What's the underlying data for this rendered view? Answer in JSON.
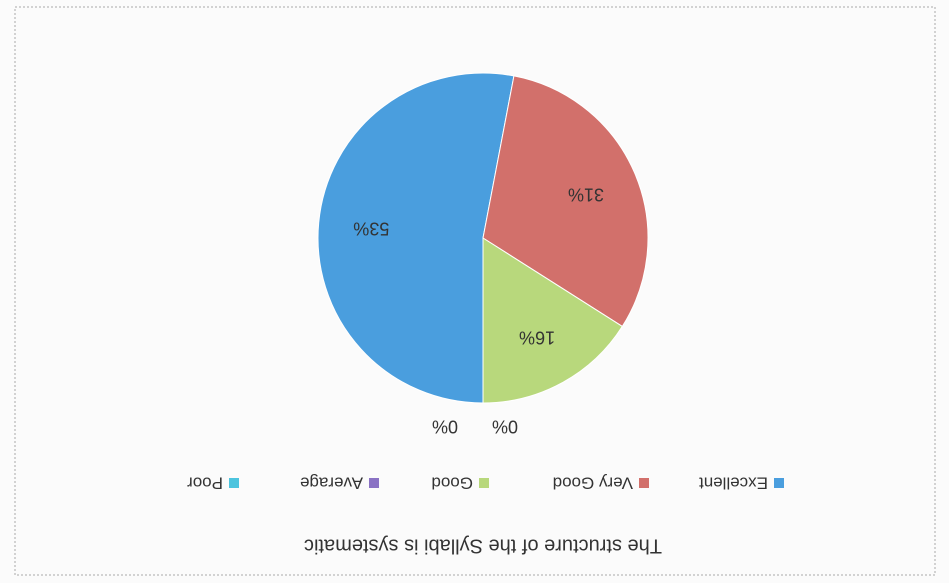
{
  "chart_data": {
    "type": "pie",
    "title": "The structure of the Syllabi is systematic",
    "categories": [
      "Excellent",
      "Very Good",
      "Good",
      "Average",
      "Poor"
    ],
    "values": [
      53,
      31,
      16,
      0,
      0
    ],
    "value_labels": [
      "53%",
      "31%",
      "16%",
      "0%",
      "0%"
    ],
    "colors": [
      "#4a9ede",
      "#d2706b",
      "#b8d87c",
      "#8a72c4",
      "#4cc4de"
    ],
    "legend": "top"
  }
}
